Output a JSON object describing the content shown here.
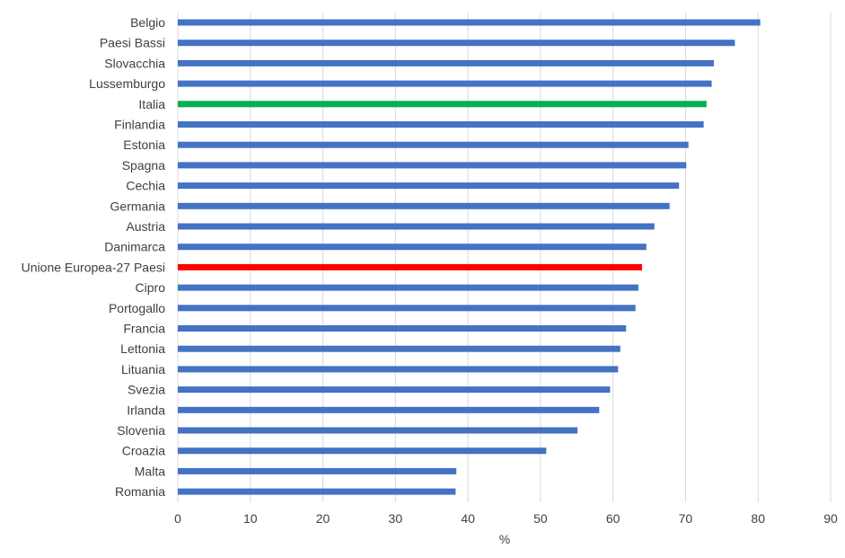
{
  "chart_data": {
    "type": "bar",
    "orientation": "horizontal",
    "categories": [
      "Belgio",
      "Paesi Bassi",
      "Slovacchia",
      "Lussemburgo",
      "Italia",
      "Finlandia",
      "Estonia",
      "Spagna",
      "Cechia",
      "Germania",
      "Austria",
      "Danimarca",
      "Unione Europea-27 Paesi",
      "Cipro",
      "Portogallo",
      "Francia",
      "Lettonia",
      "Lituania",
      "Svezia",
      "Irlanda",
      "Slovenia",
      "Croazia",
      "Malta",
      "Romania"
    ],
    "values": [
      80.3,
      76.8,
      73.9,
      73.6,
      72.9,
      72.5,
      70.4,
      70.1,
      69.1,
      67.8,
      65.7,
      64.6,
      64.0,
      63.5,
      63.1,
      61.8,
      61.0,
      60.7,
      59.6,
      58.1,
      55.1,
      50.8,
      38.4,
      38.3
    ],
    "bar_colors": [
      "#4472C4",
      "#4472C4",
      "#4472C4",
      "#4472C4",
      "#00B050",
      "#4472C4",
      "#4472C4",
      "#4472C4",
      "#4472C4",
      "#4472C4",
      "#4472C4",
      "#4472C4",
      "#FF0000",
      "#4472C4",
      "#4472C4",
      "#4472C4",
      "#4472C4",
      "#4472C4",
      "#4472C4",
      "#4472C4",
      "#4472C4",
      "#4472C4",
      "#4472C4",
      "#4472C4"
    ],
    "xlim": [
      0,
      90
    ],
    "xticks": [
      0,
      10,
      20,
      30,
      40,
      50,
      60,
      70,
      80,
      90
    ],
    "xlabel": "%",
    "ylabel": "",
    "title": "",
    "grid": "vertical",
    "legend": "none"
  }
}
